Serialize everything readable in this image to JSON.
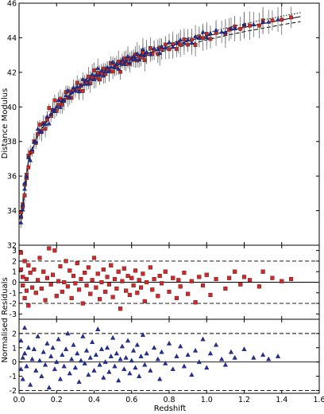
{
  "chart_data": [
    {
      "type": "scatter",
      "panel": "hubble-diagram",
      "title": "",
      "xlabel": "",
      "ylabel": "Distance Modulus",
      "xlim": [
        0.0,
        1.6
      ],
      "ylim": [
        32,
        46
      ],
      "yticks": [
        32,
        34,
        36,
        38,
        40,
        42,
        44,
        46
      ],
      "grid": false,
      "series": [
        {
          "marker": "square",
          "color": "#d62728",
          "error_bars": true
        },
        {
          "marker": "triangle",
          "color": "#1f2fa8",
          "error_bars": true
        }
      ],
      "model_curves": {
        "type": "line",
        "lines": [
          {
            "style": "solid",
            "x": [
              0.01,
              0.05,
              0.1,
              0.2,
              0.3,
              0.4,
              0.5,
              0.6,
              0.7,
              0.8,
              0.9,
              1.0,
              1.1,
              1.2,
              1.3,
              1.4,
              1.5
            ],
            "y": [
              33.4,
              36.9,
              38.4,
              40.0,
              41.0,
              41.7,
              42.3,
              42.75,
              43.15,
              43.5,
              43.8,
              44.1,
              44.35,
              44.6,
              44.82,
              45.03,
              45.22
            ]
          },
          {
            "style": "dashed",
            "x": [
              0.01,
              0.05,
              0.1,
              0.2,
              0.3,
              0.4,
              0.5,
              0.6,
              0.7,
              0.8,
              0.9,
              1.0,
              1.1,
              1.2,
              1.3,
              1.4,
              1.5
            ],
            "y": [
              33.4,
              36.9,
              38.4,
              40.0,
              40.95,
              41.62,
              42.18,
              42.62,
              43.0,
              43.32,
              43.6,
              43.88,
              44.12,
              44.35,
              44.55,
              44.75,
              44.93
            ]
          },
          {
            "style": "dotted",
            "x": [
              0.01,
              0.05,
              0.1,
              0.2,
              0.3,
              0.4,
              0.5,
              0.6,
              0.7,
              0.8,
              0.9,
              1.0,
              1.1,
              1.2,
              1.3,
              1.4,
              1.5
            ],
            "y": [
              33.4,
              36.9,
              38.4,
              40.02,
              41.05,
              41.78,
              42.4,
              42.88,
              43.3,
              43.66,
              43.98,
              44.28,
              44.55,
              44.8,
              45.03,
              45.25,
              45.45
            ]
          }
        ]
      }
    },
    {
      "type": "scatter",
      "panel": "residuals-red",
      "marker": "square",
      "color": "#d62728",
      "xlim": [
        0.0,
        1.6
      ],
      "ylim": [
        -3.5,
        3.5
      ],
      "yticks": [
        -3,
        -2,
        -1,
        0,
        1,
        2,
        3
      ],
      "reference_lines": [
        {
          "y": 0,
          "style": "solid"
        },
        {
          "y": 2,
          "style": "dashed"
        },
        {
          "y": -2,
          "style": "dashed"
        }
      ],
      "points": [
        [
          0.01,
          2.8
        ],
        [
          0.01,
          1.2
        ],
        [
          0.02,
          -0.3
        ],
        [
          0.02,
          0.5
        ],
        [
          0.03,
          -1.5
        ],
        [
          0.03,
          2.0
        ],
        [
          0.04,
          0.3
        ],
        [
          0.04,
          -0.8
        ],
        [
          0.05,
          1.6
        ],
        [
          0.05,
          -2.2
        ],
        [
          0.06,
          0.9
        ],
        [
          0.07,
          -0.5
        ],
        [
          0.08,
          1.2
        ],
        [
          0.09,
          -1.0
        ],
        [
          0.1,
          0.2
        ],
        [
          0.11,
          2.3
        ],
        [
          0.12,
          -0.6
        ],
        [
          0.13,
          1.0
        ],
        [
          0.14,
          -1.7
        ],
        [
          0.15,
          0.4
        ],
        [
          0.16,
          3.2
        ],
        [
          0.17,
          -0.2
        ],
        [
          0.18,
          0.7
        ],
        [
          0.19,
          3.0
        ],
        [
          0.2,
          -1.3
        ],
        [
          0.21,
          0.1
        ],
        [
          0.22,
          1.5
        ],
        [
          0.23,
          -0.9
        ],
        [
          0.24,
          0.0
        ],
        [
          0.25,
          2.0
        ],
        [
          0.26,
          -0.4
        ],
        [
          0.27,
          1.1
        ],
        [
          0.28,
          -1.5
        ],
        [
          0.29,
          0.6
        ],
        [
          0.3,
          -0.1
        ],
        [
          0.31,
          1.8
        ],
        [
          0.32,
          -0.7
        ],
        [
          0.33,
          0.3
        ],
        [
          0.34,
          -2.0
        ],
        [
          0.35,
          0.9
        ],
        [
          0.36,
          -0.3
        ],
        [
          0.37,
          1.4
        ],
        [
          0.38,
          -1.1
        ],
        [
          0.39,
          0.2
        ],
        [
          0.4,
          2.3
        ],
        [
          0.41,
          -0.5
        ],
        [
          0.42,
          0.8
        ],
        [
          0.43,
          -1.6
        ],
        [
          0.44,
          0.0
        ],
        [
          0.45,
          1.2
        ],
        [
          0.46,
          -0.9
        ],
        [
          0.47,
          0.5
        ],
        [
          0.48,
          -0.2
        ],
        [
          0.49,
          1.6
        ],
        [
          0.5,
          -1.4
        ],
        [
          0.51,
          0.3
        ],
        [
          0.52,
          -0.6
        ],
        [
          0.53,
          1.0
        ],
        [
          0.54,
          -2.5
        ],
        [
          0.55,
          0.1
        ],
        [
          0.56,
          1.3
        ],
        [
          0.57,
          -0.8
        ],
        [
          0.58,
          0.6
        ],
        [
          0.59,
          -1.2
        ],
        [
          0.6,
          0.4
        ],
        [
          0.61,
          -0.3
        ],
        [
          0.62,
          1.1
        ],
        [
          0.63,
          -1.0
        ],
        [
          0.64,
          0.2
        ],
        [
          0.65,
          -0.5
        ],
        [
          0.66,
          0.8
        ],
        [
          0.67,
          -1.8
        ],
        [
          0.68,
          0.0
        ],
        [
          0.7,
          1.4
        ],
        [
          0.71,
          -0.7
        ],
        [
          0.72,
          0.3
        ],
        [
          0.74,
          -1.3
        ],
        [
          0.75,
          0.6
        ],
        [
          0.76,
          -0.1
        ],
        [
          0.78,
          1.0
        ],
        [
          0.8,
          -0.9
        ],
        [
          0.82,
          0.4
        ],
        [
          0.84,
          -1.5
        ],
        [
          0.85,
          0.2
        ],
        [
          0.86,
          -0.4
        ],
        [
          0.88,
          0.9
        ],
        [
          0.9,
          -1.1
        ],
        [
          0.92,
          0.1
        ],
        [
          0.94,
          -1.9
        ],
        [
          0.96,
          0.5
        ],
        [
          0.98,
          -0.3
        ],
        [
          1.0,
          0.7
        ],
        [
          1.02,
          -1.2
        ],
        [
          1.05,
          0.3
        ],
        [
          1.1,
          -0.6
        ],
        [
          1.12,
          0.4
        ],
        [
          1.15,
          1.0
        ],
        [
          1.18,
          -0.2
        ],
        [
          1.2,
          0.5
        ],
        [
          1.23,
          0.2
        ],
        [
          1.28,
          -0.4
        ],
        [
          1.3,
          1.0
        ],
        [
          1.35,
          0.4
        ],
        [
          1.4,
          0.1
        ],
        [
          1.45,
          0.3
        ]
      ]
    },
    {
      "type": "scatter",
      "panel": "residuals-blue",
      "marker": "triangle",
      "color": "#1f2fa8",
      "xlim": [
        0.0,
        1.6
      ],
      "ylim": [
        -2.2,
        3.0
      ],
      "yticks": [
        -2,
        -1,
        0,
        1,
        2
      ],
      "reference_lines": [
        {
          "y": 0,
          "style": "solid"
        },
        {
          "y": 2,
          "style": "dashed"
        },
        {
          "y": -2,
          "style": "dashed"
        }
      ],
      "points": [
        [
          0.01,
          1.5
        ],
        [
          0.01,
          -0.5
        ],
        [
          0.02,
          0.3
        ],
        [
          0.02,
          -1.2
        ],
        [
          0.03,
          2.4
        ],
        [
          0.03,
          0.6
        ],
        [
          0.04,
          -0.3
        ],
        [
          0.05,
          1.0
        ],
        [
          0.06,
          -1.6
        ],
        [
          0.07,
          0.2
        ],
        [
          0.08,
          0.9
        ],
        [
          0.09,
          -0.6
        ],
        [
          0.1,
          1.8
        ],
        [
          0.11,
          0.1
        ],
        [
          0.12,
          -1.0
        ],
        [
          0.13,
          0.7
        ],
        [
          0.14,
          -0.2
        ],
        [
          0.15,
          1.3
        ],
        [
          0.16,
          -1.8
        ],
        [
          0.17,
          0.4
        ],
        [
          0.18,
          1.0
        ],
        [
          0.19,
          -0.5
        ],
        [
          0.2,
          0.0
        ],
        [
          0.21,
          1.6
        ],
        [
          0.22,
          -1.2
        ],
        [
          0.23,
          0.5
        ],
        [
          0.24,
          -0.3
        ],
        [
          0.25,
          0.9
        ],
        [
          0.26,
          2.0
        ],
        [
          0.27,
          -0.8
        ],
        [
          0.28,
          0.2
        ],
        [
          0.29,
          1.2
        ],
        [
          0.3,
          -0.4
        ],
        [
          0.31,
          0.6
        ],
        [
          0.32,
          -1.4
        ],
        [
          0.33,
          0.1
        ],
        [
          0.34,
          1.8
        ],
        [
          0.35,
          -0.1
        ],
        [
          0.36,
          0.8
        ],
        [
          0.37,
          -0.9
        ],
        [
          0.38,
          0.3
        ],
        [
          0.39,
          1.4
        ],
        [
          0.4,
          -0.6
        ],
        [
          0.41,
          0.5
        ],
        [
          0.42,
          2.3
        ],
        [
          0.43,
          -0.2
        ],
        [
          0.44,
          0.9
        ],
        [
          0.45,
          -1.1
        ],
        [
          0.46,
          0.0
        ],
        [
          0.47,
          1.0
        ],
        [
          0.48,
          -0.7
        ],
        [
          0.49,
          0.4
        ],
        [
          0.5,
          1.7
        ],
        [
          0.51,
          -0.3
        ],
        [
          0.52,
          0.6
        ],
        [
          0.53,
          -1.3
        ],
        [
          0.54,
          0.2
        ],
        [
          0.55,
          1.1
        ],
        [
          0.56,
          -0.5
        ],
        [
          0.57,
          0.3
        ],
        [
          0.58,
          1.5
        ],
        [
          0.59,
          -0.8
        ],
        [
          0.6,
          0.1
        ],
        [
          0.61,
          0.8
        ],
        [
          0.62,
          -0.4
        ],
        [
          0.63,
          1.2
        ],
        [
          0.64,
          -1.0
        ],
        [
          0.65,
          0.4
        ],
        [
          0.66,
          1.9
        ],
        [
          0.67,
          -0.2
        ],
        [
          0.68,
          0.6
        ],
        [
          0.7,
          -0.6
        ],
        [
          0.72,
          1.0
        ],
        [
          0.74,
          0.2
        ],
        [
          0.75,
          -1.2
        ],
        [
          0.76,
          0.7
        ],
        [
          0.78,
          -0.1
        ],
        [
          0.8,
          1.3
        ],
        [
          0.82,
          -0.5
        ],
        [
          0.84,
          0.4
        ],
        [
          0.86,
          1.1
        ],
        [
          0.88,
          -0.3
        ],
        [
          0.9,
          0.5
        ],
        [
          0.92,
          -0.9
        ],
        [
          0.94,
          0.8
        ],
        [
          0.96,
          0.0
        ],
        [
          0.98,
          1.6
        ],
        [
          1.0,
          -0.4
        ],
        [
          1.02,
          0.6
        ],
        [
          1.05,
          1.2
        ],
        [
          1.08,
          0.2
        ],
        [
          1.1,
          -0.2
        ],
        [
          1.13,
          0.7
        ],
        [
          1.15,
          0.3
        ],
        [
          1.2,
          0.9
        ],
        [
          1.25,
          0.3
        ],
        [
          1.3,
          0.5
        ],
        [
          1.33,
          0.2
        ],
        [
          1.38,
          0.4
        ]
      ]
    }
  ],
  "axes": {
    "main_ylabel": "Distance Modulus",
    "residual_ylabel": "Normalised Residuals",
    "xlabel": "Redshift",
    "xticks": [
      "0.0",
      "0.2",
      "0.4",
      "0.6",
      "0.8",
      "1.0",
      "1.2",
      "1.4",
      "1.6"
    ]
  }
}
